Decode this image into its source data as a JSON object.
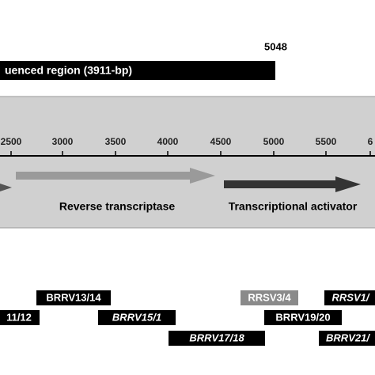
{
  "top_bar": {
    "label": "uenced region (3911-bp)",
    "end_label": "5048"
  },
  "axis": {
    "ticks": [
      "2500",
      "3000",
      "3500",
      "4000",
      "4500",
      "5000",
      "5500",
      "6"
    ]
  },
  "genes": [
    {
      "label": "Reverse transcriptase",
      "color": "#9a9a9a"
    },
    {
      "label": "Transcriptional activator",
      "color": "#333333"
    }
  ],
  "primers": [
    {
      "label": "BRRV13/14",
      "italic": false,
      "color": "#000000"
    },
    {
      "label": "11/12",
      "italic": false,
      "color": "#000000"
    },
    {
      "label": "BRRV15/1",
      "italic": true,
      "color": "#000000"
    },
    {
      "label": "BRRV17/18",
      "italic": true,
      "color": "#000000"
    },
    {
      "label": "RRSV3/4",
      "italic": false,
      "color": "#8a8a8a"
    },
    {
      "label": "BRRV19/20",
      "italic": false,
      "color": "#000000"
    },
    {
      "label": "RRSV1/",
      "italic": true,
      "color": "#000000"
    },
    {
      "label": "BRRV21/",
      "italic": true,
      "color": "#000000"
    }
  ]
}
